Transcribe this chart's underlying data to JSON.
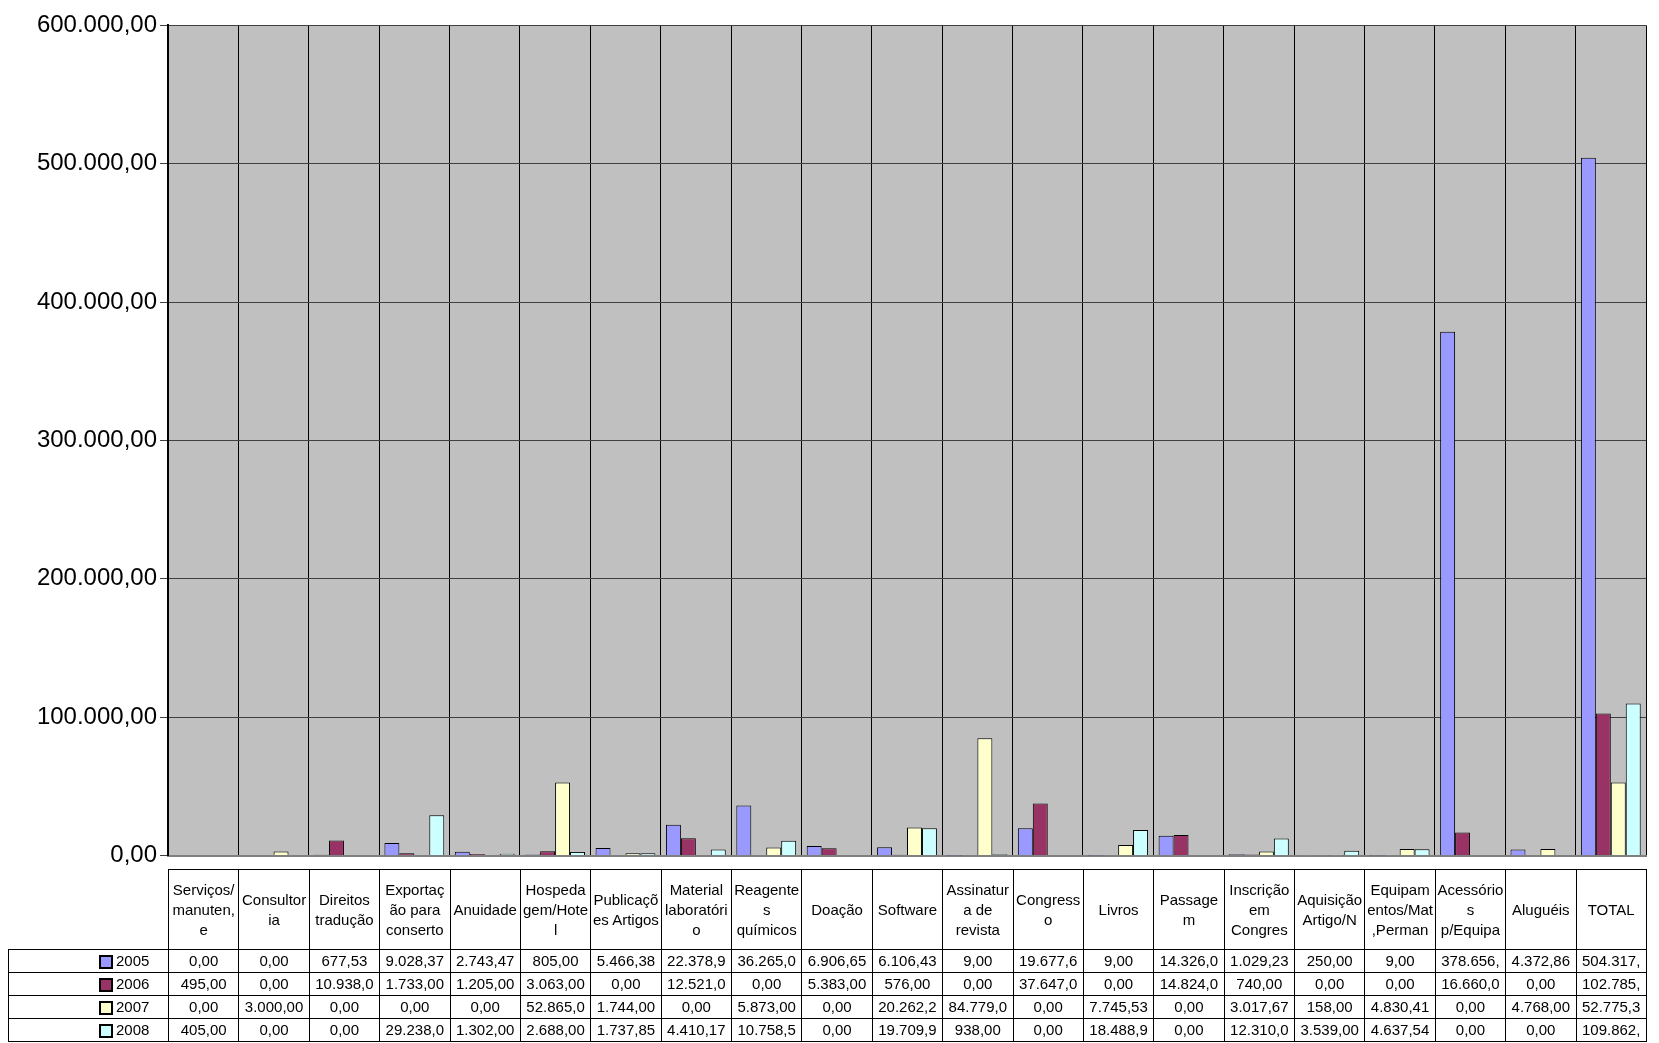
{
  "chart_data": {
    "type": "bar",
    "categories": [
      "Serviços/manuten,e",
      "Consultoria",
      "Direitos tradução",
      "Exportação para conserto",
      "Anuidade",
      "Hospedagem/Hotel",
      "Publicações Artigos",
      "Material laboratório",
      "Reagentes químicos",
      "Doação",
      "Software",
      "Assinatura de revista",
      "Congresso",
      "Livros",
      "Passagem",
      "Inscrição em Congres",
      "Aquisição Artigo/N",
      "Equipamentos/Mat,Perman",
      "Acessórios p/Equipa",
      "Aluguéis",
      "TOTAL"
    ],
    "series": [
      {
        "name": "2005",
        "color": "#9999ff",
        "values": [
          0,
          0,
          677.53,
          9028.37,
          2743.47,
          805,
          5466.38,
          22378.9,
          36265.0,
          6906.65,
          6106.43,
          9,
          19677.6,
          9,
          14326.0,
          1029.23,
          250,
          9,
          378656,
          4372.86,
          504317
        ],
        "value_labels": [
          "0,00",
          "0,00",
          "677,53",
          "9.028,37",
          "2.743,47",
          "805,00",
          "5.466,38",
          "22.378,9",
          "36.265,0",
          "6.906,65",
          "6.106,43",
          "9,00",
          "19.677,6",
          "9,00",
          "14.326,0",
          "1.029,23",
          "250,00",
          "9,00",
          "378.656,",
          "4.372,86",
          "504.317,"
        ]
      },
      {
        "name": "2006",
        "color": "#993366",
        "values": [
          495,
          0,
          10938.0,
          1733,
          1205,
          3063,
          0,
          12521.0,
          0,
          5383,
          576,
          0,
          37647.0,
          0,
          14824.0,
          740,
          0,
          0,
          16660.0,
          0,
          102785
        ],
        "value_labels": [
          "495,00",
          "0,00",
          "10.938,0",
          "1.733,00",
          "1.205,00",
          "3.063,00",
          "0,00",
          "12.521,0",
          "0,00",
          "5.383,00",
          "576,00",
          "0,00",
          "37.647,0",
          "0,00",
          "14.824,0",
          "740,00",
          "0,00",
          "0,00",
          "16.660,0",
          "0,00",
          "102.785,"
        ]
      },
      {
        "name": "2007",
        "color": "#ffffcc",
        "values": [
          0,
          3000,
          0,
          0,
          0,
          52865.0,
          1744,
          0,
          5873,
          0,
          20262.2,
          84779.0,
          0,
          7745.53,
          0,
          3017.67,
          158,
          4830.41,
          0,
          4768,
          52775.3
        ],
        "value_labels": [
          "0,00",
          "3.000,00",
          "0,00",
          "0,00",
          "0,00",
          "52.865,0",
          "1.744,00",
          "0,00",
          "5.873,00",
          "0,00",
          "20.262,2",
          "84.779,0",
          "0,00",
          "7.745,53",
          "0,00",
          "3.017,67",
          "158,00",
          "4.830,41",
          "0,00",
          "4.768,00",
          "52.775,3"
        ]
      },
      {
        "name": "2008",
        "color": "#ccffff",
        "values": [
          405,
          0,
          0,
          29238.0,
          1302,
          2688,
          1737.85,
          4410.17,
          10758.5,
          0,
          19709.9,
          938,
          0,
          18488.9,
          0,
          12310.0,
          3539,
          4637.54,
          0,
          0,
          109862
        ],
        "value_labels": [
          "405,00",
          "0,00",
          "0,00",
          "29.238,0",
          "1.302,00",
          "2.688,00",
          "1.737,85",
          "4.410,17",
          "10.758,5",
          "0,00",
          "19.709,9",
          "938,00",
          "0,00",
          "18.488,9",
          "0,00",
          "12.310,0",
          "3.539,00",
          "4.637,54",
          "0,00",
          "0,00",
          "109.862,"
        ]
      }
    ],
    "ylim": [
      0,
      600000
    ],
    "yticks": [
      {
        "value": 0,
        "label": "0,00"
      },
      {
        "value": 100000,
        "label": "100.000,00"
      },
      {
        "value": 200000,
        "label": "200.000,00"
      },
      {
        "value": 300000,
        "label": "300.000,00"
      },
      {
        "value": 400000,
        "label": "400.000,00"
      },
      {
        "value": 500000,
        "label": "500.000,00"
      },
      {
        "value": 600000,
        "label": "600.000,00"
      }
    ],
    "grid": true,
    "legend": "bottom"
  }
}
